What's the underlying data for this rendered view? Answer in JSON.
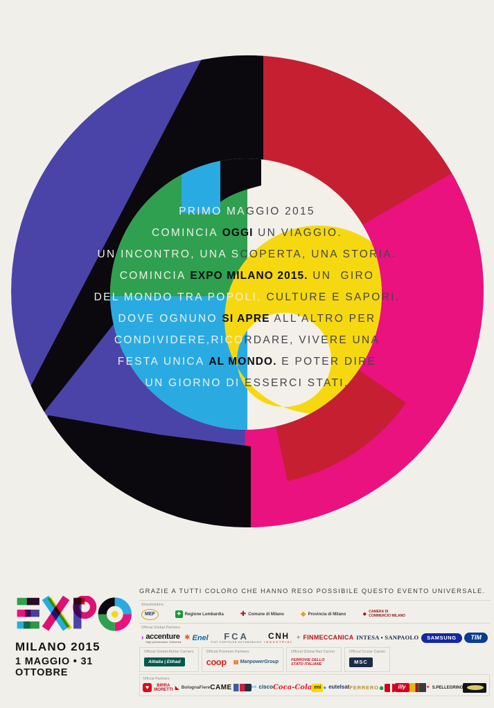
{
  "poster": {
    "colors": {
      "background": "#f1efe9",
      "blue": "#4a44a8",
      "black": "#0b090e",
      "red": "#c51f31",
      "magenta": "#e9127f",
      "green": "#2fa04f",
      "cyan": "#29abe2",
      "yellow": "#f6d811"
    },
    "message_lines": [
      [
        {
          "t": "PRIMO MA",
          "s": "light"
        },
        {
          "t": "GGIO 2015",
          "s": "dark"
        }
      ],
      [
        {
          "t": "COMINCIA ",
          "s": "light"
        },
        {
          "t": "OGGI",
          "s": "bold"
        },
        {
          "t": " UN VIAGGIO.",
          "s": "dark"
        }
      ],
      [
        {
          "t": "UN INCONTRO, UNA S",
          "s": "light"
        },
        {
          "t": "COPERTA, UNA STORIA.",
          "s": "dark"
        }
      ],
      [
        {
          "t": "COMINCIA ",
          "s": "light"
        },
        {
          "t": "EXPO MILANO 2015.",
          "s": "bold"
        },
        {
          "t": " UN  GIRO",
          "s": "dark"
        }
      ],
      [
        {
          "t": "DEL MONDO TRA POPOLI,",
          "s": "light"
        },
        {
          "t": " CULTURE E SAPORI.",
          "s": "dark"
        }
      ],
      [
        {
          "t": "DOVE OGNUNO ",
          "s": "light"
        },
        {
          "t": "SI APRE",
          "s": "bold"
        },
        {
          "t": " ALL'ALTRO PER",
          "s": "dark"
        }
      ],
      [
        {
          "t": "CONDIVIDERE,RICO",
          "s": "light"
        },
        {
          "t": "RDARE, VIVERE UNA",
          "s": "dark"
        }
      ],
      [
        {
          "t": "FESTA UNICA ",
          "s": "light"
        },
        {
          "t": "AL MONDO.",
          "s": "bold"
        },
        {
          "t": " E POTER DIRE",
          "s": "dark"
        }
      ],
      [
        {
          "t": "UN GIORNO DI ",
          "s": "light"
        },
        {
          "t": "ESSERCI STATI.",
          "s": "dark"
        }
      ]
    ]
  },
  "footer": {
    "thanks_line": "GRAZIE A TUTTI COLORO CHE HANNO RESO POSSIBILE QUESTO EVENTO UNIVERSALE.",
    "expo": {
      "wordmark": "EXPO",
      "city_year": "MILANO 2015",
      "dates": "1 MAGGIO • 31 OTTOBRE"
    },
    "sponsor_rows": {
      "shareholders": {
        "label": "Shareholders",
        "logos": [
          {
            "name": "mef-logo",
            "cls": "mef",
            "label": "MEF"
          },
          {
            "name": "regione-lombardia-logo",
            "cls": "rlomb",
            "mark": "✚",
            "label": "Regione Lombardia"
          },
          {
            "name": "comune-di-milano-logo",
            "cls": "comune",
            "mark": "✚",
            "label": "Comune di Milano"
          },
          {
            "name": "provincia-di-milano-logo",
            "cls": "provincia",
            "mark": "◆",
            "label": "Provincia di Milano"
          },
          {
            "name": "camera-commercio-milano-logo",
            "cls": "camcom",
            "mark": "●",
            "label": "CAMERA DI COMMERCIO MILANO"
          }
        ]
      },
      "global_partners": {
        "label": "Official Global Partners",
        "logos": [
          {
            "name": "accenture-logo",
            "cls": "accenture",
            "mark": "›",
            "label": "accenture",
            "sub": "High performance. Delivered."
          },
          {
            "name": "enel-logo",
            "cls": "enel",
            "mark": "✱",
            "label": "Enel"
          },
          {
            "name": "fca-logo",
            "cls": "fca",
            "label": "FCA",
            "sub": "FIAT CHRYSLER AUTOMOBILES"
          },
          {
            "name": "cnh-logo",
            "cls": "cnh",
            "label": "CNH",
            "sub": "INDUSTRIAL"
          },
          {
            "name": "finmeccanica-logo",
            "cls": "finm",
            "mark": "✦",
            "label": "FINMECCANICA"
          },
          {
            "name": "intesa-sanpaolo-logo",
            "cls": "intesa",
            "label": "INTESA ▪ SANPAOLO"
          },
          {
            "name": "samsung-logo",
            "cls": "samsung",
            "label": "SAMSUNG"
          },
          {
            "name": "tim-logo",
            "cls": "tim",
            "label": "TIM"
          }
        ]
      },
      "carrier_groups": [
        {
          "label": "Official Global Airline Carriers",
          "logos": [
            {
              "name": "alitalia-etihad-logo",
              "cls": "alitalia",
              "label": "Alitalia | Etihad"
            }
          ]
        },
        {
          "label": "Official Premium Partners",
          "logos": [
            {
              "name": "coop-logo",
              "cls": "coop",
              "label": "coop"
            },
            {
              "name": "manpowergroup-logo",
              "cls": "manpower",
              "mark": "▮▮",
              "label": "ManpowerGroup"
            }
          ]
        },
        {
          "label": "Official Global Rail Carrier",
          "logos": [
            {
              "name": "ferrovie-dello-stato-logo",
              "cls": "fs",
              "label": "FERROVIE DELLO STATO ITALIANE"
            }
          ]
        },
        {
          "label": "Official Cruise Carrier",
          "logos": [
            {
              "name": "msc-logo",
              "cls": "msc",
              "label": "MSC"
            }
          ]
        }
      ],
      "official_partners": {
        "label": "Official Partners",
        "logos": [
          {
            "name": "algida-logo",
            "cls": "algida",
            "mark": "♥"
          },
          {
            "name": "birra-moretti-logo",
            "cls": "moretti",
            "label": "BIRRA MORETTI"
          },
          {
            "name": "bolognafiere-logo",
            "cls": "bolofiere",
            "mark": "◣",
            "label": "BolognaFiere"
          },
          {
            "name": "came-logo",
            "cls": "came",
            "label": "CAME"
          },
          {
            "name": "epayment-logos",
            "cls": "epay"
          },
          {
            "name": "cisco-logo",
            "cls": "cisco",
            "mark": "ılıılı",
            "label": "cisco"
          },
          {
            "name": "coca-cola-logo",
            "cls": "cocacola",
            "label": "Coca-Cola"
          },
          {
            "name": "eni-logo",
            "cls": "eni",
            "label": "eni"
          },
          {
            "name": "eutelsat-logo",
            "cls": "eutelsat",
            "mark": "●",
            "label": "eutelsat"
          },
          {
            "name": "ferrero-logo",
            "cls": "ferrero",
            "label": "FERRERO"
          },
          {
            "name": "green-circle-logo",
            "cls": "greenc",
            "mark": "●"
          },
          {
            "name": "red-box-logo",
            "cls": "redbox"
          },
          {
            "name": "illy-logo",
            "cls": "illy",
            "label": "illy"
          },
          {
            "name": "crest-logo",
            "cls": "crest"
          },
          {
            "name": "san-pellegrino-logo",
            "cls": "spell",
            "mark": "✶",
            "label": "S.PELLEGRINO"
          },
          {
            "name": "black-gold-oval-logo",
            "cls": "techno"
          }
        ]
      }
    }
  }
}
